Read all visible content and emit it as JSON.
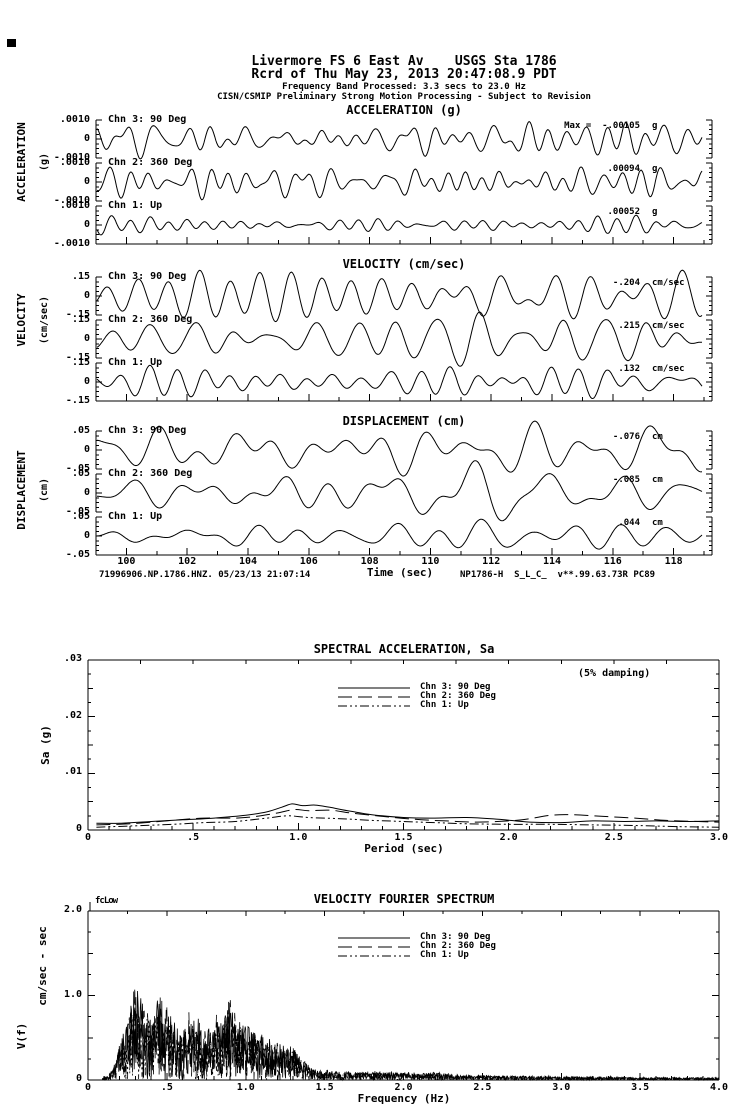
{
  "page": {
    "background": "#ffffff",
    "ink": "#000000"
  },
  "header": {
    "line1": "Livermore FS 6 East Av    USGS Sta 1786",
    "line2": "Rcrd of Thu May 23, 2013 20:47:08.9 PDT",
    "line3": "Frequency Band Processed: 3.3 secs to 23.0 Hz",
    "line4": "CISN/CSMIP Preliminary Strong Motion Processing - Subject to Revision"
  },
  "timeseries": {
    "xlabel": "Time (sec)",
    "x_tick_labels": [
      "100",
      "102",
      "104",
      "106",
      "108",
      "110",
      "112",
      "114",
      "116",
      "118"
    ],
    "footer_left": "71996906.NP.1786.HNZ. 05/23/13 21:07:14",
    "footer_right": "NP1786-H  S_L_C_  v**.99.63.73R PC89",
    "panels": [
      {
        "title": "ACCELERATION (g)",
        "axis_label": "ACCELERATION",
        "axis_units": "(g)",
        "scale": {
          "top": ".0010",
          "zero": "0",
          "bottom": "-.0010"
        },
        "traces": [
          {
            "channel": "Chn 3: 90 Deg",
            "peak": "Max =  -.00105",
            "unit": "g"
          },
          {
            "channel": "Chn 2: 360 Deg",
            "peak": ".00094",
            "unit": "g"
          },
          {
            "channel": "Chn 1: Up",
            "peak": ".00052",
            "unit": "g"
          }
        ]
      },
      {
        "title": "VELOCITY (cm/sec)",
        "axis_label": "VELOCITY",
        "axis_units": "(cm/sec)",
        "scale": {
          "top": ".15",
          "zero": "0",
          "bottom": "-.15"
        },
        "traces": [
          {
            "channel": "Chn 3: 90 Deg",
            "peak": "-.204",
            "unit": "cm/sec"
          },
          {
            "channel": "Chn 2: 360 Deg",
            "peak": ".215",
            "unit": "cm/sec"
          },
          {
            "channel": "Chn 1: Up",
            "peak": ".132",
            "unit": "cm/sec"
          }
        ]
      },
      {
        "title": "DISPLACEMENT (cm)",
        "axis_label": "DISPLACEMENT",
        "axis_units": "(cm)",
        "scale": {
          "top": ".05",
          "zero": "0",
          "bottom": "-.05"
        },
        "traces": [
          {
            "channel": "Chn 3: 90 Deg",
            "peak": "-.076",
            "unit": "cm"
          },
          {
            "channel": "Chn 2: 360 Deg",
            "peak": "-.085",
            "unit": "cm"
          },
          {
            "channel": "Chn 1: Up",
            "peak": ".044",
            "unit": "cm"
          }
        ]
      }
    ]
  },
  "sa": {
    "title": "SPECTRAL ACCELERATION, Sa",
    "damping_note": "(5% damping)",
    "ylabel": "Sa (g)",
    "xlabel": "Period (sec)",
    "y_tick_labels": [
      ".03",
      ".02",
      ".01",
      "0"
    ],
    "x_tick_labels": [
      "0",
      ".5",
      "1.0",
      "1.5",
      "2.0",
      "2.5",
      "3.0"
    ],
    "legend": [
      "Chn 3: 90 Deg",
      "Chn 2: 360 Deg",
      "Chn 1: Up"
    ]
  },
  "fourier": {
    "title": "VELOCITY FOURIER SPECTRUM",
    "corner_annotation": "fcLow",
    "ylabel_value": "V(f)",
    "ylabel_units": "cm/sec - sec",
    "xlabel": "Frequency (Hz)",
    "y_tick_labels": [
      "2.0",
      "1.0",
      "0"
    ],
    "x_tick_labels": [
      "0",
      ".5",
      "1.0",
      "1.5",
      "2.0",
      "2.5",
      "3.0",
      "3.5",
      "4.0"
    ],
    "legend": [
      "Chn 3: 90 Deg",
      "Chn 2: 360 Deg",
      "Chn 1: Up"
    ]
  },
  "chart_data": [
    {
      "type": "line",
      "title": "ACCELERATION (g)",
      "xlabel": "Time (sec)",
      "x_range": [
        99,
        119
      ],
      "x_ticks": [
        100,
        102,
        104,
        106,
        108,
        110,
        112,
        114,
        116,
        118
      ],
      "trace_scale": 0.001,
      "channels": [
        "Chn 3: 90 Deg",
        "Chn 2: 360 Deg",
        "Chn 1: Up"
      ],
      "peaks": [
        -0.00105,
        0.00094,
        0.00052
      ],
      "units": "g"
    },
    {
      "type": "line",
      "title": "VELOCITY (cm/sec)",
      "xlabel": "Time (sec)",
      "x_range": [
        99,
        119
      ],
      "x_ticks": [
        100,
        102,
        104,
        106,
        108,
        110,
        112,
        114,
        116,
        118
      ],
      "trace_scale": 0.15,
      "channels": [
        "Chn 3: 90 Deg",
        "Chn 2: 360 Deg",
        "Chn 1: Up"
      ],
      "peaks": [
        -0.204,
        0.215,
        0.132
      ],
      "units": "cm/sec"
    },
    {
      "type": "line",
      "title": "DISPLACEMENT (cm)",
      "xlabel": "Time (sec)",
      "x_range": [
        99,
        119
      ],
      "x_ticks": [
        100,
        102,
        104,
        106,
        108,
        110,
        112,
        114,
        116,
        118
      ],
      "trace_scale": 0.05,
      "channels": [
        "Chn 3: 90 Deg",
        "Chn 2: 360 Deg",
        "Chn 1: Up"
      ],
      "peaks": [
        -0.076,
        -0.085,
        0.044
      ],
      "units": "cm"
    },
    {
      "type": "line",
      "title": "SPECTRAL ACCELERATION, Sa",
      "xlabel": "Period (sec)",
      "ylabel": "Sa (g)",
      "xlim": [
        0,
        3.0
      ],
      "ylim": [
        0,
        0.03
      ],
      "damping": "5%",
      "legend_position": "top-center",
      "series": [
        {
          "name": "Chn 3: 90 Deg",
          "style": "solid",
          "points": [
            [
              0.04,
              0.0012
            ],
            [
              0.15,
              0.0012
            ],
            [
              0.3,
              0.0015
            ],
            [
              0.45,
              0.0018
            ],
            [
              0.6,
              0.0021
            ],
            [
              0.75,
              0.0026
            ],
            [
              0.85,
              0.0032
            ],
            [
              0.92,
              0.004
            ],
            [
              0.97,
              0.0046
            ],
            [
              1.02,
              0.0043
            ],
            [
              1.08,
              0.0044
            ],
            [
              1.15,
              0.004
            ],
            [
              1.25,
              0.0033
            ],
            [
              1.35,
              0.0027
            ],
            [
              1.5,
              0.0022
            ],
            [
              1.65,
              0.0021
            ],
            [
              1.8,
              0.0022
            ],
            [
              1.95,
              0.0019
            ],
            [
              2.1,
              0.0014
            ],
            [
              2.25,
              0.0013
            ],
            [
              2.4,
              0.0016
            ],
            [
              2.55,
              0.0015
            ],
            [
              2.7,
              0.0016
            ],
            [
              2.85,
              0.0015
            ],
            [
              3.0,
              0.0016
            ]
          ]
        },
        {
          "name": "Chn 2: 360 Deg",
          "style": "long-dash",
          "points": [
            [
              0.04,
              0.0009
            ],
            [
              0.2,
              0.0011
            ],
            [
              0.4,
              0.0017
            ],
            [
              0.55,
              0.0021
            ],
            [
              0.7,
              0.0021
            ],
            [
              0.8,
              0.0024
            ],
            [
              0.9,
              0.003
            ],
            [
              0.98,
              0.0036
            ],
            [
              1.05,
              0.0034
            ],
            [
              1.15,
              0.0035
            ],
            [
              1.25,
              0.003
            ],
            [
              1.4,
              0.0024
            ],
            [
              1.55,
              0.0019
            ],
            [
              1.7,
              0.0016
            ],
            [
              1.85,
              0.0014
            ],
            [
              2.0,
              0.0016
            ],
            [
              2.1,
              0.002
            ],
            [
              2.2,
              0.0026
            ],
            [
              2.3,
              0.0027
            ],
            [
              2.45,
              0.0024
            ],
            [
              2.6,
              0.0021
            ],
            [
              2.75,
              0.0017
            ],
            [
              2.9,
              0.0015
            ],
            [
              3.0,
              0.0014
            ]
          ]
        },
        {
          "name": "Chn 1: Up",
          "style": "dash-dot-dot",
          "points": [
            [
              0.04,
              0.0005
            ],
            [
              0.2,
              0.0007
            ],
            [
              0.4,
              0.001
            ],
            [
              0.55,
              0.0013
            ],
            [
              0.7,
              0.0015
            ],
            [
              0.85,
              0.0021
            ],
            [
              0.95,
              0.0025
            ],
            [
              1.05,
              0.0022
            ],
            [
              1.2,
              0.002
            ],
            [
              1.35,
              0.0017
            ],
            [
              1.5,
              0.0015
            ],
            [
              1.65,
              0.0013
            ],
            [
              1.8,
              0.0011
            ],
            [
              2.0,
              0.001
            ],
            [
              2.2,
              0.001
            ],
            [
              2.4,
              0.0009
            ],
            [
              2.6,
              0.0008
            ],
            [
              2.8,
              0.0006
            ],
            [
              3.0,
              0.0005
            ]
          ]
        }
      ]
    },
    {
      "type": "line",
      "title": "VELOCITY FOURIER SPECTRUM",
      "xlabel": "Frequency (Hz)",
      "ylabel": "V(f) cm/sec - sec",
      "xlim": [
        0,
        4.0
      ],
      "ylim": [
        0,
        2.0
      ],
      "annotation": "fcLow",
      "series_names": [
        "Chn 3: 90 Deg",
        "Chn 2: 360 Deg",
        "Chn 1: Up"
      ],
      "peak": {
        "frequency": 0.3,
        "amplitude": 1.15
      },
      "envelope_points": [
        [
          0.08,
          0.01
        ],
        [
          0.12,
          0.05
        ],
        [
          0.16,
          0.15
        ],
        [
          0.2,
          0.45
        ],
        [
          0.25,
          0.7
        ],
        [
          0.3,
          1.15
        ],
        [
          0.35,
          0.95
        ],
        [
          0.4,
          0.8
        ],
        [
          0.45,
          1.0
        ],
        [
          0.5,
          0.95
        ],
        [
          0.55,
          0.7
        ],
        [
          0.6,
          0.6
        ],
        [
          0.65,
          0.7
        ],
        [
          0.7,
          0.75
        ],
        [
          0.75,
          0.6
        ],
        [
          0.8,
          0.65
        ],
        [
          0.85,
          0.75
        ],
        [
          0.9,
          1.05
        ],
        [
          0.95,
          0.7
        ],
        [
          1.0,
          0.65
        ],
        [
          1.05,
          0.6
        ],
        [
          1.1,
          0.6
        ],
        [
          1.15,
          0.5
        ],
        [
          1.2,
          0.45
        ],
        [
          1.25,
          0.4
        ],
        [
          1.3,
          0.42
        ],
        [
          1.35,
          0.25
        ],
        [
          1.4,
          0.18
        ],
        [
          1.45,
          0.12
        ],
        [
          1.5,
          0.12
        ],
        [
          1.6,
          0.1
        ],
        [
          1.7,
          0.1
        ],
        [
          1.8,
          0.09
        ],
        [
          1.9,
          0.1
        ],
        [
          2.0,
          0.09
        ],
        [
          2.1,
          0.1
        ],
        [
          2.2,
          0.09
        ],
        [
          2.4,
          0.06
        ],
        [
          2.6,
          0.05
        ],
        [
          2.8,
          0.05
        ],
        [
          3.0,
          0.04
        ],
        [
          3.2,
          0.04
        ],
        [
          3.5,
          0.03
        ],
        [
          4.0,
          0.03
        ]
      ]
    }
  ]
}
